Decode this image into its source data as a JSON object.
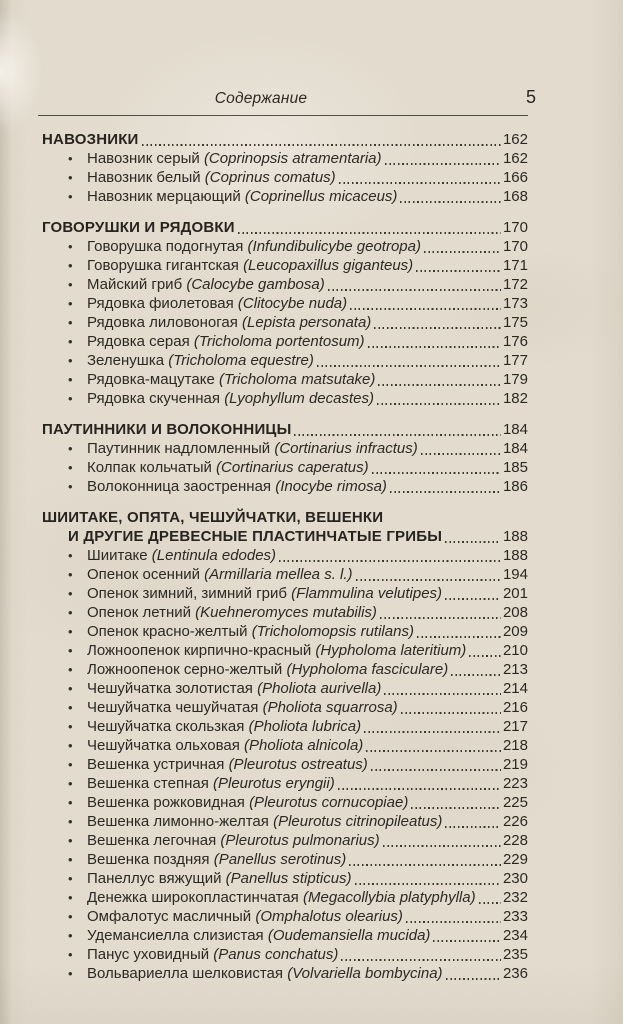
{
  "header": {
    "title": "Содержание",
    "page_number": "5"
  },
  "glyphs": {
    "bullet": "•"
  },
  "colors": {
    "paper": "#e4ddcf",
    "ink": "#2c2924"
  },
  "sections": [
    {
      "title_lines": [
        "НАВОЗНИКИ"
      ],
      "page": "162",
      "entries": [
        {
          "name": "Навозник серый ",
          "latin": "(Coprinopsis atramentaria)",
          "page": "162"
        },
        {
          "name": "Навозник белый ",
          "latin": "(Coprinus comatus)",
          "page": "166"
        },
        {
          "name": "Навозник мерцающий ",
          "latin": "(Coprinellus micaceus)",
          "page": "168"
        }
      ]
    },
    {
      "title_lines": [
        "ГОВОРУШКИ И РЯДОВКИ"
      ],
      "page": "170",
      "entries": [
        {
          "name": "Говорушка подогнутая ",
          "latin": "(Infundibulicybe geotropa)",
          "page": "170"
        },
        {
          "name": "Говорушка гигантская ",
          "latin": "(Leucopaxillus giganteus)",
          "page": "171"
        },
        {
          "name": "Майский гриб ",
          "latin": "(Calocybe gambosa)",
          "page": "172"
        },
        {
          "name": "Рядовка фиолетовая ",
          "latin": "(Clitocybe nuda)",
          "page": "173"
        },
        {
          "name": "Рядовка лиловоногая ",
          "latin": "(Lepista personata)",
          "page": "175"
        },
        {
          "name": "Рядовка серая ",
          "latin": "(Tricholoma portentosum)",
          "page": "176"
        },
        {
          "name": "Зеленушка ",
          "latin": "(Tricholoma equestre)",
          "page": "177"
        },
        {
          "name": "Рядовка-мацутаке ",
          "latin": "(Tricholoma matsutake)",
          "page": "179"
        },
        {
          "name": "Рядовка скученная ",
          "latin": "(Lyophyllum decastes)",
          "page": "182"
        }
      ]
    },
    {
      "title_lines": [
        "ПАУТИННИКИ И ВОЛОКОННИЦЫ"
      ],
      "page": "184",
      "entries": [
        {
          "name": "Паутинник надломленный ",
          "latin": "(Cortinarius infractus)",
          "page": "184"
        },
        {
          "name": "Колпак кольчатый ",
          "latin": "(Cortinarius caperatus)",
          "page": "185"
        },
        {
          "name": "Волоконница заостренная ",
          "latin": "(Inocybe rimosa)",
          "page": "186"
        }
      ]
    },
    {
      "title_lines": [
        "ШИИТАКЕ, ОПЯТА, ЧЕШУЙЧАТКИ, ВЕШЕНКИ",
        "И ДРУГИЕ ДРЕВЕСНЫЕ ПЛАСТИНЧАТЫЕ ГРИБЫ"
      ],
      "page": "188",
      "entries": [
        {
          "name": "Шиитаке ",
          "latin": "(Lentinula edodes)",
          "page": "188"
        },
        {
          "name": "Опенок осенний ",
          "latin": "(Armillaria mellea s. l.)",
          "page": "194"
        },
        {
          "name": "Опенок зимний, зимний гриб ",
          "latin": "(Flammulina velutipes)",
          "page": "201"
        },
        {
          "name": "Опенок летний ",
          "latin": "(Kuehneromyces mutabilis)",
          "page": "208"
        },
        {
          "name": "Опенок красно-желтый ",
          "latin": "(Tricholomopsis rutilans)",
          "page": "209"
        },
        {
          "name": "Ложноопенок кирпично-красный ",
          "latin": "(Hypholoma lateritium)",
          "page": "210"
        },
        {
          "name": "Ложноопенок серно-желтый ",
          "latin": "(Hypholoma fasciculare)",
          "page": "213"
        },
        {
          "name": "Чешуйчатка золотистая ",
          "latin": "(Pholiota aurivella)",
          "page": "214"
        },
        {
          "name": "Чешуйчатка чешуйчатая ",
          "latin": "(Pholiota squarrosa)",
          "page": "216"
        },
        {
          "name": "Чешуйчатка скользкая ",
          "latin": "(Pholiota lubrica)",
          "page": "217"
        },
        {
          "name": "Чешуйчатка ольховая ",
          "latin": "(Pholiota alnicola)",
          "page": "218"
        },
        {
          "name": "Вешенка устричная ",
          "latin": "(Pleurotus ostreatus)",
          "page": "219"
        },
        {
          "name": "Вешенка степная ",
          "latin": "(Pleurotus eryngii)",
          "page": "223"
        },
        {
          "name": "Вешенка рожковидная ",
          "latin": "(Pleurotus cornucopiae)",
          "page": "225"
        },
        {
          "name": "Вешенка лимонно-желтая ",
          "latin": "(Pleurotus citrinopileatus)",
          "page": "226"
        },
        {
          "name": "Вешенка легочная ",
          "latin": "(Pleurotus pulmonarius)",
          "page": "228"
        },
        {
          "name": "Вешенка поздняя ",
          "latin": "(Panellus serotinus)",
          "page": "229"
        },
        {
          "name": "Панеллус вяжущий ",
          "latin": "(Panellus stipticus)",
          "page": "230"
        },
        {
          "name": "Денежка широкопластинчатая ",
          "latin": "(Megacollybia platyphylla)",
          "page": "232"
        },
        {
          "name": "Омфалотус масличный ",
          "latin": "(Omphalotus olearius)",
          "page": "233"
        },
        {
          "name": "Удемансиелла слизистая ",
          "latin": "(Oudemansiella mucida)",
          "page": "234"
        },
        {
          "name": "Панус уховидный ",
          "latin": "(Panus conchatus)",
          "page": "235"
        },
        {
          "name": "Вольвариелла шелковистая ",
          "latin": "(Volvariella bombycina)",
          "page": "236"
        }
      ]
    }
  ]
}
